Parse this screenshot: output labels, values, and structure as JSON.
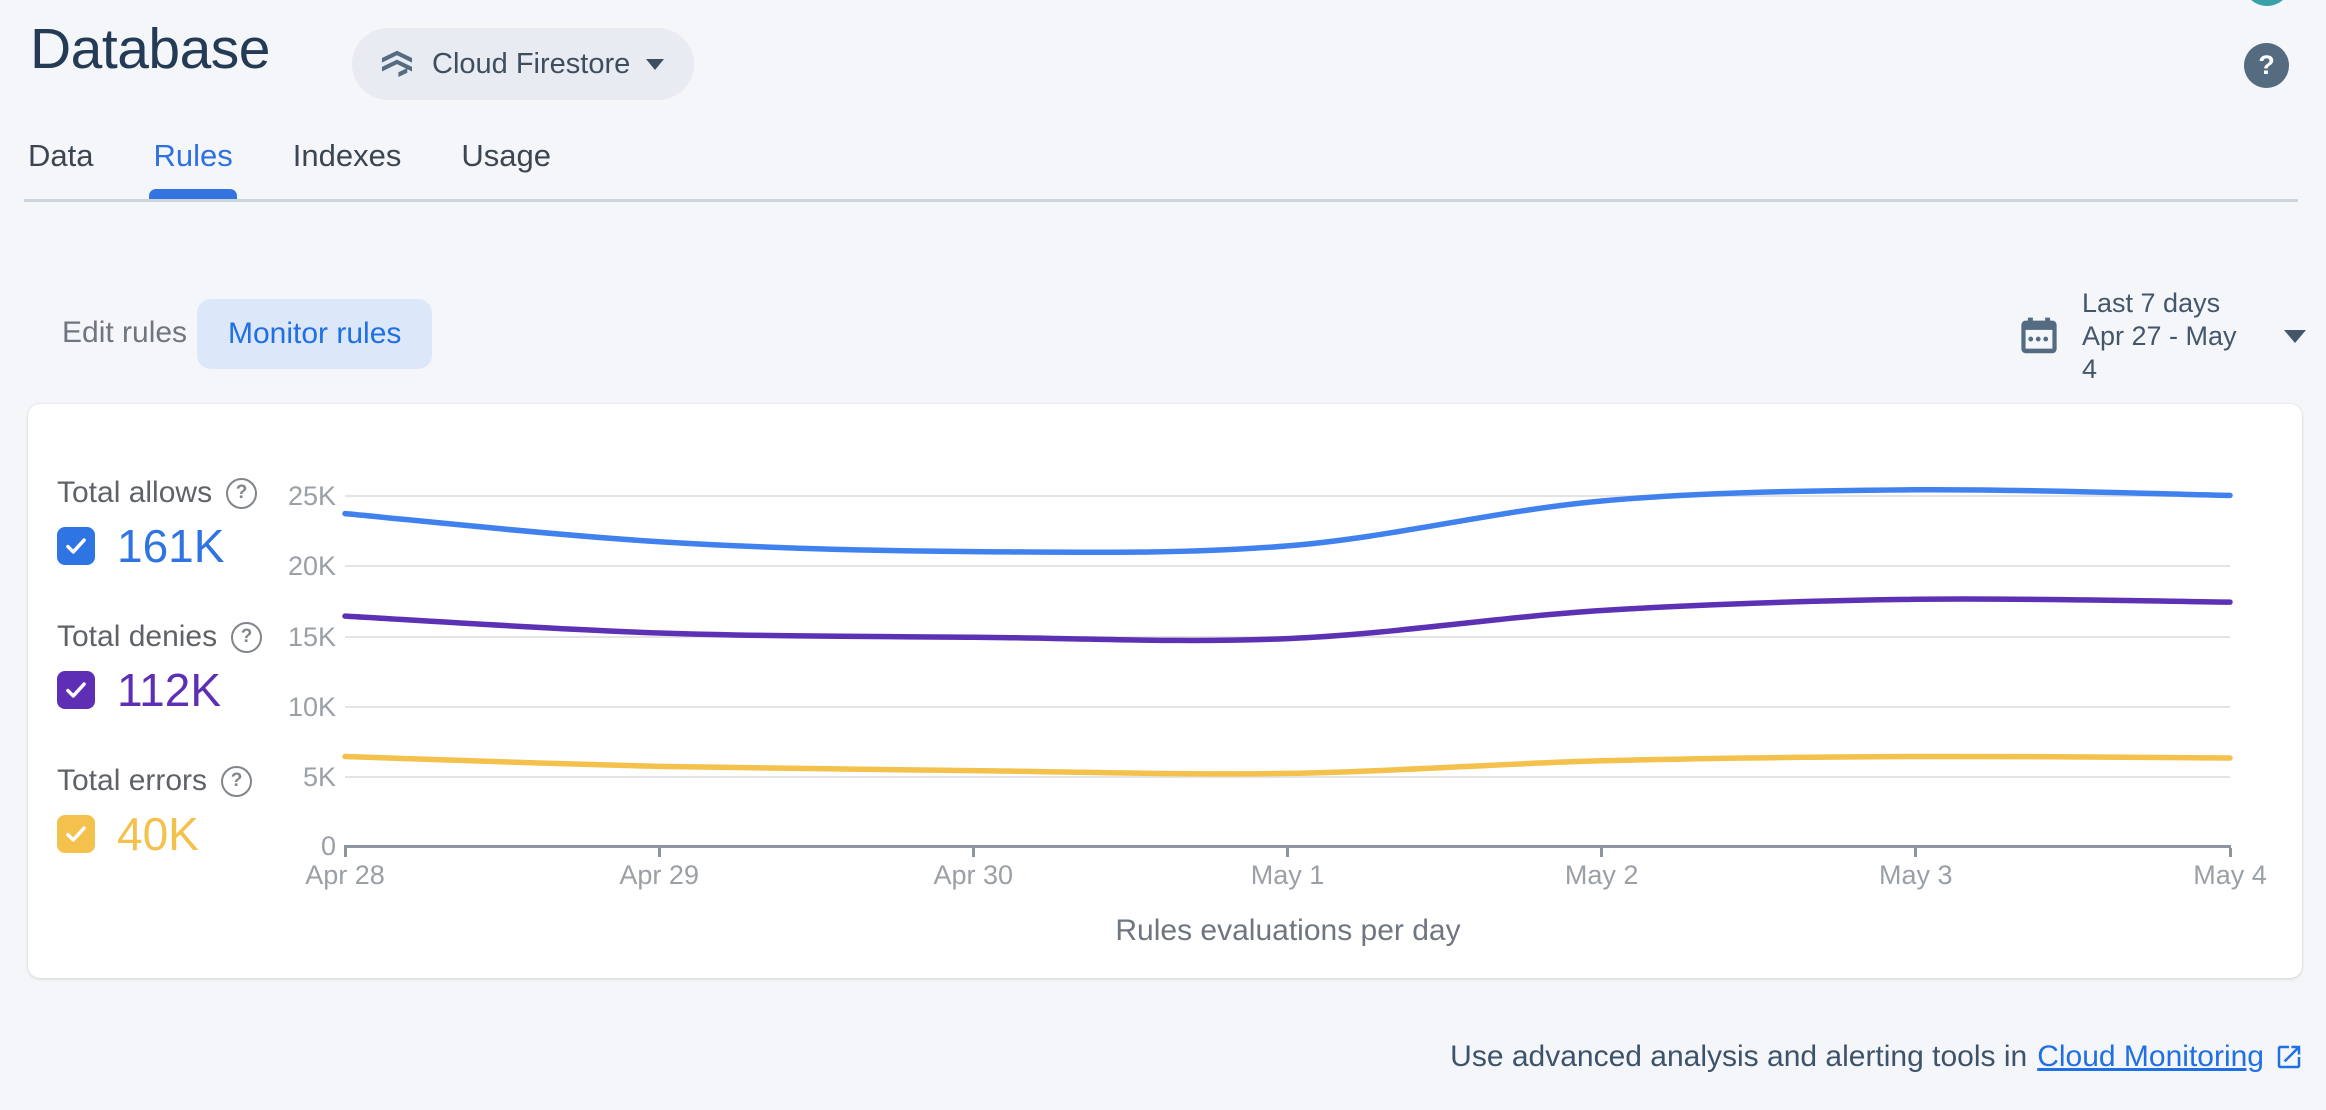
{
  "header": {
    "title": "Database",
    "database_chip": {
      "label": "Cloud Firestore"
    },
    "help_glyph": "?"
  },
  "tabs": [
    {
      "label": "Data",
      "active": false
    },
    {
      "label": "Rules",
      "active": true
    },
    {
      "label": "Indexes",
      "active": false
    },
    {
      "label": "Usage",
      "active": false
    }
  ],
  "toolbar": {
    "edit_rules_label": "Edit rules",
    "monitor_rules_label": "Monitor rules",
    "date_range": {
      "preset": "Last 7 days",
      "range": "Apr 27 - May 4"
    }
  },
  "legend": [
    {
      "label": "Total allows",
      "value": "161K",
      "color": "#2e74e3",
      "checked": true,
      "help_glyph": "?"
    },
    {
      "label": "Total denies",
      "value": "112K",
      "color": "#5e2fb5",
      "checked": true,
      "help_glyph": "?"
    },
    {
      "label": "Total errors",
      "value": "40K",
      "color": "#f3c14c",
      "checked": true,
      "help_glyph": "?"
    }
  ],
  "chart_data": {
    "type": "line",
    "title": "Rules evaluations per day",
    "x_labels": [
      "Apr 28",
      "Apr 29",
      "Apr 30",
      "May 1",
      "May 2",
      "May 3",
      "May 4"
    ],
    "y_tick_labels": [
      "25K",
      "20K",
      "15K",
      "10K",
      "5K",
      "0"
    ],
    "y_tick_values": [
      25000,
      20000,
      15000,
      10000,
      5000,
      0
    ],
    "ylim": [
      0,
      25000
    ],
    "grid": true,
    "legend_position": "left",
    "series": [
      {
        "name": "Total allows",
        "color": "#4181ee",
        "values": [
          23600,
          21600,
          20900,
          21300,
          24500,
          25300,
          24900
        ]
      },
      {
        "name": "Total denies",
        "color": "#5c31b4",
        "values": [
          16300,
          15100,
          14800,
          14700,
          16700,
          17500,
          17300
        ]
      },
      {
        "name": "Total errors",
        "color": "#f3c14c",
        "values": [
          6300,
          5600,
          5300,
          5100,
          6000,
          6300,
          6200
        ]
      }
    ]
  },
  "footer": {
    "text": "Use advanced analysis and alerting tools in",
    "link_label": "Cloud Monitoring"
  },
  "colors": {
    "accent_blue": "#1f6fe5",
    "title_navy": "#233b55",
    "slate_icon": "#546b80",
    "page_background": "#f4f6f9",
    "avatar_teal": "#399fa9",
    "monitor_pill_bg": "#dce7f9",
    "chip_bg": "#e8ebf2",
    "axis_gray": "#9aa0a6"
  }
}
